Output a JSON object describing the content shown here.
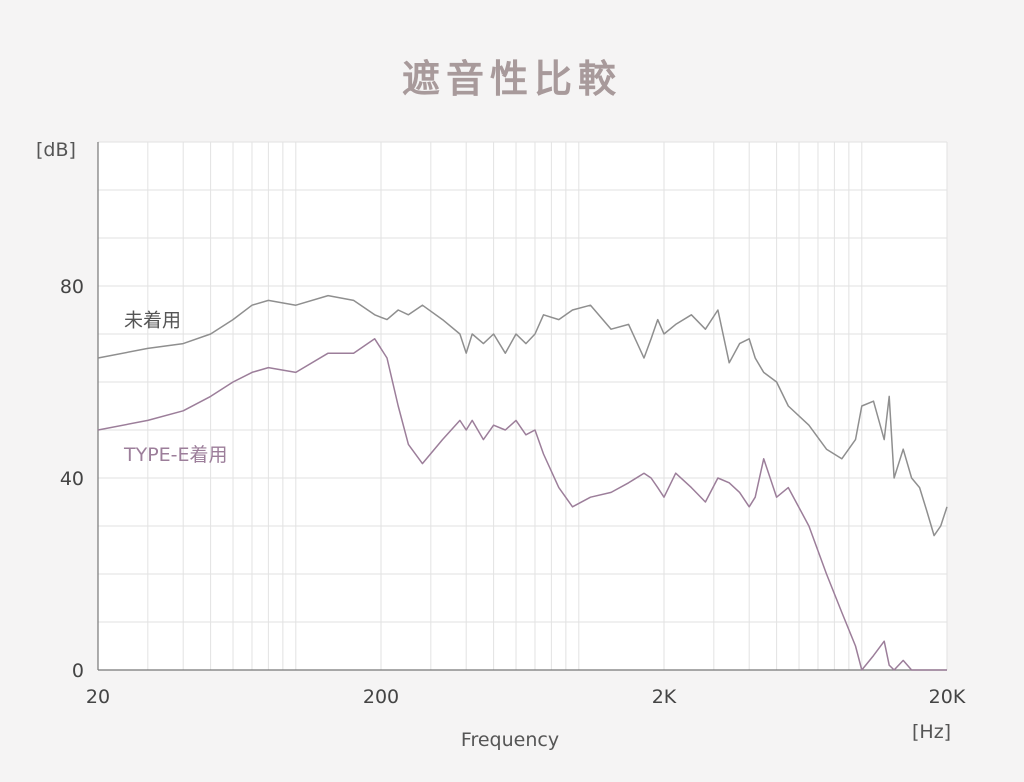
{
  "chart_data": {
    "type": "line",
    "title": "遮音性比較",
    "xlabel": "Frequency",
    "x_unit": "[Hz]",
    "y_unit": "[dB]",
    "x_scale": "log",
    "xlim": [
      20,
      20000
    ],
    "ylim": [
      0,
      110
    ],
    "x_ticks": [
      {
        "value": 20,
        "label": "20"
      },
      {
        "value": 200,
        "label": "200"
      },
      {
        "value": 2000,
        "label": "2K"
      },
      {
        "value": 20000,
        "label": "20K"
      }
    ],
    "y_ticks": [
      {
        "value": 0,
        "label": "0"
      },
      {
        "value": 40,
        "label": "40"
      },
      {
        "value": 80,
        "label": "80"
      }
    ],
    "grid": true,
    "series": [
      {
        "name": "未着用",
        "color": "#8f8f8f",
        "x": [
          20,
          30,
          40,
          50,
          60,
          70,
          80,
          100,
          130,
          160,
          190,
          210,
          230,
          250,
          280,
          330,
          380,
          400,
          420,
          460,
          500,
          550,
          600,
          650,
          700,
          750,
          850,
          950,
          1100,
          1300,
          1500,
          1700,
          1800,
          1900,
          2000,
          2200,
          2500,
          2800,
          3100,
          3400,
          3700,
          4000,
          4200,
          4500,
          5000,
          5500,
          6500,
          7500,
          8500,
          9500,
          10000,
          11000,
          12000,
          12500,
          13000,
          14000,
          15000,
          16000,
          17000,
          18000,
          19000,
          20000
        ],
        "y": [
          65,
          67,
          68,
          70,
          73,
          76,
          77,
          76,
          78,
          77,
          74,
          73,
          75,
          74,
          76,
          73,
          70,
          66,
          70,
          68,
          70,
          66,
          70,
          68,
          70,
          74,
          73,
          75,
          76,
          71,
          72,
          65,
          69,
          73,
          70,
          72,
          74,
          71,
          75,
          64,
          68,
          69,
          65,
          62,
          60,
          55,
          51,
          46,
          44,
          48,
          55,
          56,
          48,
          57,
          40,
          46,
          40,
          38,
          33,
          28,
          30,
          34
        ]
      },
      {
        "name": "TYPE-E着用",
        "color": "#9c7e9a",
        "x": [
          20,
          30,
          40,
          50,
          60,
          70,
          80,
          100,
          130,
          160,
          190,
          210,
          230,
          250,
          280,
          330,
          380,
          400,
          420,
          460,
          500,
          550,
          600,
          650,
          700,
          750,
          850,
          950,
          1100,
          1300,
          1500,
          1700,
          1800,
          1900,
          2000,
          2200,
          2500,
          2800,
          3100,
          3400,
          3700,
          4000,
          4200,
          4500,
          5000,
          5500,
          6500,
          7500,
          8500,
          9500,
          10000,
          11000,
          12000,
          12500,
          13000,
          14000,
          15000,
          16000,
          17000,
          18000,
          19000,
          20000
        ],
        "y": [
          50,
          52,
          54,
          57,
          60,
          62,
          63,
          62,
          66,
          66,
          69,
          65,
          55,
          47,
          43,
          48,
          52,
          50,
          52,
          48,
          51,
          50,
          52,
          49,
          50,
          45,
          38,
          34,
          36,
          37,
          39,
          41,
          40,
          38,
          36,
          41,
          38,
          35,
          40,
          39,
          37,
          34,
          36,
          44,
          36,
          38,
          30,
          20,
          12,
          5,
          0,
          3,
          6,
          1,
          0,
          2,
          0,
          0,
          0,
          0,
          0,
          0
        ]
      }
    ]
  }
}
